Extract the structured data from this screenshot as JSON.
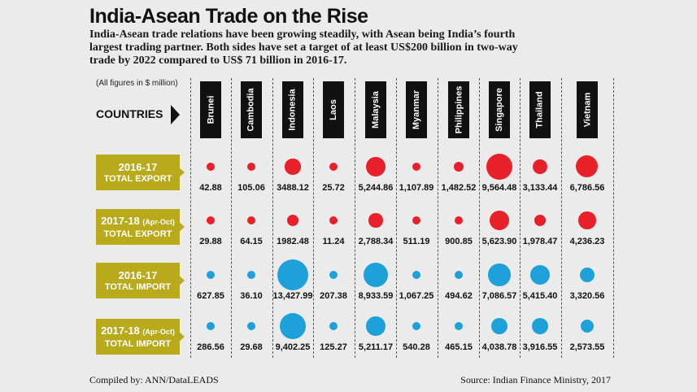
{
  "chart_data": {
    "type": "bubble-table",
    "title": "India-Asean Trade on the Rise",
    "subtitle": "India-Asean trade relations have been growing steadily, with Asean being India’s fourth largest trading partner. Both sides have set a target of at least US$200 billion in two-way trade by 2022 compared to US$ 71 billion in 2016-17.",
    "units_note": "(All figures in $ million)",
    "column_header": "COUNTRIES",
    "categories": [
      "Brunei",
      "Cambodia",
      "Indonesia",
      "Laos",
      "Malaysia",
      "Myanmar",
      "Philippines",
      "Singapore",
      "Thailand",
      "Vietnam"
    ],
    "series": [
      {
        "period": "2016-17",
        "period_note": "",
        "name": "TOTAL EXPORT",
        "color": "#e8202a",
        "values": [
          42.88,
          105.06,
          3488.12,
          25.72,
          5244.86,
          1107.89,
          1482.52,
          9564.48,
          3133.44,
          6786.56
        ],
        "labels": [
          "42.88",
          "105.06",
          "3488.12",
          "25.72",
          "5,244.86",
          "1,107.89",
          "1,482.52",
          "9,564.48",
          "3,133.44",
          "6,786.56"
        ]
      },
      {
        "period": "2017-18",
        "period_note": "(Apr-Oct)",
        "name": "TOTAL EXPORT",
        "color": "#e8202a",
        "values": [
          29.88,
          64.15,
          1982.48,
          11.24,
          2788.34,
          511.19,
          900.85,
          5623.9,
          1978.47,
          4236.23
        ],
        "labels": [
          "29.88",
          "64.15",
          "1982.48",
          "11.24",
          "2,788.34",
          "511.19",
          "900.85",
          "5,623.90",
          "1,978.47",
          "4,236.23"
        ]
      },
      {
        "period": "2016-17",
        "period_note": "",
        "name": "TOTAL IMPORT",
        "color": "#1da1d8",
        "values": [
          627.85,
          36.1,
          13427.99,
          207.38,
          8933.59,
          1067.25,
          494.62,
          7086.57,
          5415.4,
          3320.56
        ],
        "labels": [
          "627.85",
          "36.10",
          "13,427.99",
          "207.38",
          "8,933.59",
          "1,067.25",
          "494.62",
          "7,086.57",
          "5,415.40",
          "3,320.56"
        ]
      },
      {
        "period": "2017-18",
        "period_note": "(Apr-Oct)",
        "name": "TOTAL IMPORT",
        "color": "#1da1d8",
        "values": [
          286.56,
          29.68,
          9402.25,
          125.27,
          5211.17,
          540.28,
          465.15,
          4038.78,
          3916.55,
          2573.55
        ],
        "labels": [
          "286.56",
          "29.68",
          "9,402.25",
          "125.27",
          "5,211.17",
          "540.28",
          "465.15",
          "4,038.78",
          "3,916.55",
          "2,573.55"
        ]
      }
    ],
    "credit": "Compiled by: ANN/DataLEADS",
    "source": "Source: Indian Finance Ministry, 2017"
  }
}
